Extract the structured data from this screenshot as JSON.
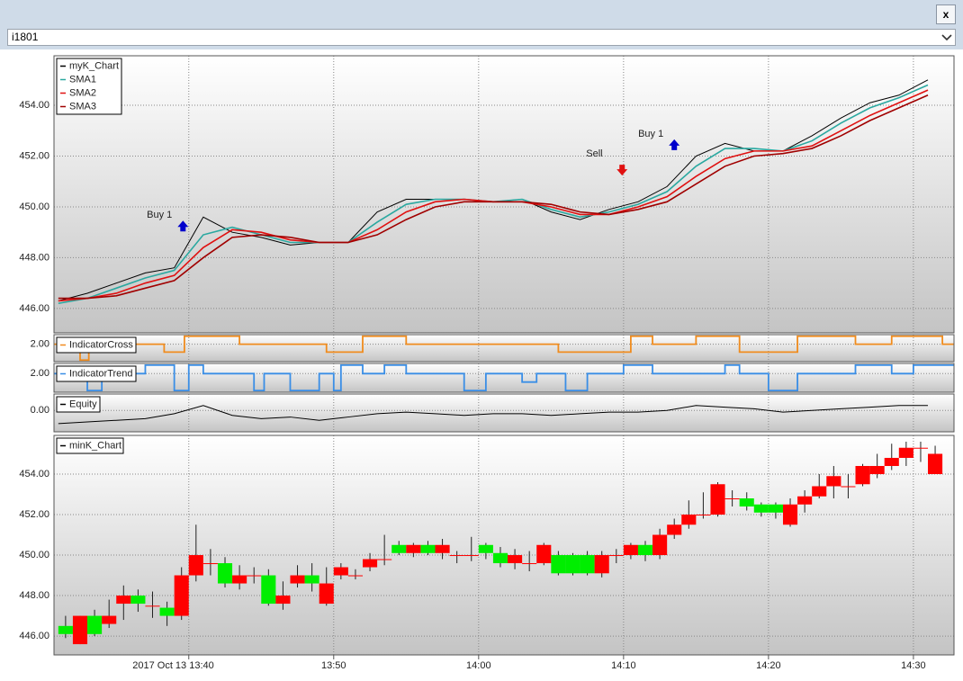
{
  "window": {
    "close_button": "x",
    "symbol": "i1801"
  },
  "chart_data": [
    {
      "type": "line",
      "x": [
        811,
        813,
        815,
        817,
        819,
        821,
        823,
        825,
        827,
        829,
        831,
        833,
        835,
        837,
        839,
        841,
        843,
        845,
        847,
        849,
        851,
        853,
        855,
        857,
        859,
        861,
        863,
        865,
        867,
        869,
        871
      ],
      "series": [
        {
          "name": "myK_Chart",
          "color": "#000000",
          "values": [
            446.3,
            446.6,
            447.0,
            447.4,
            447.6,
            449.6,
            449.0,
            448.8,
            448.5,
            448.6,
            448.6,
            449.8,
            450.3,
            450.3,
            450.3,
            450.2,
            450.3,
            449.8,
            449.5,
            449.9,
            450.2,
            450.8,
            452.0,
            452.5,
            452.2,
            452.2,
            452.8,
            453.5,
            454.1,
            454.4,
            455.0
          ]
        },
        {
          "name": "SMA1",
          "color": "#2aa8a0",
          "values": [
            446.2,
            446.4,
            446.8,
            447.2,
            447.5,
            448.9,
            449.2,
            448.9,
            448.6,
            448.6,
            448.6,
            449.4,
            450.1,
            450.3,
            450.3,
            450.2,
            450.3,
            449.9,
            449.6,
            449.8,
            450.1,
            450.6,
            451.6,
            452.3,
            452.3,
            452.2,
            452.6,
            453.3,
            453.9,
            454.3,
            454.8
          ]
        },
        {
          "name": "SMA2",
          "color": "#e01010",
          "values": [
            446.3,
            446.4,
            446.6,
            447.0,
            447.3,
            448.4,
            449.1,
            449.0,
            448.7,
            448.6,
            448.6,
            449.1,
            449.8,
            450.2,
            450.3,
            450.2,
            450.2,
            450.0,
            449.7,
            449.7,
            450.0,
            450.4,
            451.2,
            451.9,
            452.2,
            452.2,
            452.4,
            453.0,
            453.6,
            454.1,
            454.6
          ]
        },
        {
          "name": "SMA3",
          "color": "#a00000",
          "values": [
            446.4,
            446.4,
            446.5,
            446.8,
            447.1,
            448.0,
            448.8,
            448.9,
            448.8,
            448.6,
            448.6,
            448.9,
            449.5,
            450.0,
            450.2,
            450.2,
            450.2,
            450.1,
            449.8,
            449.7,
            449.9,
            450.2,
            450.9,
            451.6,
            452.0,
            452.1,
            452.3,
            452.8,
            453.4,
            453.9,
            454.4
          ]
        }
      ],
      "ylim": [
        445.04,
        455.95
      ],
      "yticks": [
        {
          "value": 446,
          "label": "446.00"
        },
        {
          "value": 448,
          "label": "448.00"
        },
        {
          "value": 450,
          "label": "450.00"
        },
        {
          "value": 452,
          "label": "452.00"
        },
        {
          "value": 454,
          "label": "454.00"
        }
      ],
      "grid": true,
      "legend": "top-left",
      "signals": [
        {
          "type": "buy",
          "label": "Buy 1",
          "x": 819.6,
          "value": 449.6,
          "color": "#0000cc"
        },
        {
          "type": "buy",
          "label": "Buy 1",
          "x": 853.5,
          "value": 452.8,
          "color": "#0000cc"
        },
        {
          "type": "sell",
          "label": "Sell",
          "x": 849.9,
          "value": 451.8,
          "color": "#e01010"
        }
      ]
    },
    {
      "type": "step",
      "x": [
        810.7,
        812.5,
        813.1,
        818.3,
        819.7,
        823.5,
        829.5,
        832,
        835,
        845.5,
        850.5,
        852,
        855,
        858,
        862,
        866,
        868.5,
        872
      ],
      "series": [
        {
          "name": "IndicatorCross",
          "color": "#f08c1e",
          "values": [
            2,
            0,
            2,
            1,
            3,
            2,
            1,
            3,
            2,
            1,
            3,
            2,
            3,
            1,
            3,
            2,
            3,
            2
          ]
        }
      ],
      "ylim": [
        -0.2,
        3.2
      ],
      "yticks": [
        {
          "value": 2,
          "label": "2.00"
        }
      ],
      "grid": true,
      "legend": "top-left"
    },
    {
      "type": "step",
      "x": [
        810.7,
        813,
        814,
        817,
        819,
        820,
        821,
        824.5,
        825.2,
        827,
        829,
        830,
        830.5,
        832,
        833.5,
        835,
        839,
        840.5,
        843,
        844,
        846,
        847.5,
        850,
        852,
        857,
        858,
        860,
        862,
        866,
        868.5,
        870
      ],
      "series": [
        {
          "name": "IndicatorTrend",
          "color": "#3a8ee6",
          "values": [
            2,
            0,
            2,
            3,
            0,
            3,
            2,
            0,
            2,
            0,
            2,
            0,
            3,
            2,
            3,
            2,
            0,
            2,
            1,
            2,
            0,
            2,
            3,
            2,
            3,
            2,
            0,
            2,
            3,
            2,
            3
          ]
        }
      ],
      "ylim": [
        -0.2,
        3.2
      ],
      "yticks": [
        {
          "value": 2,
          "label": "2.00"
        }
      ],
      "grid": true,
      "legend": "top-left"
    },
    {
      "type": "line",
      "x": [
        811,
        813,
        815,
        817,
        819,
        821,
        823,
        825,
        827,
        829,
        831,
        833,
        835,
        837,
        839,
        841,
        843,
        845,
        847,
        849,
        851,
        853,
        855,
        857,
        859,
        861,
        863,
        865,
        867,
        869,
        871
      ],
      "series": [
        {
          "name": "Equity",
          "color": "#000000",
          "values": [
            -0.8,
            -0.7,
            -0.6,
            -0.5,
            -0.2,
            0.3,
            -0.3,
            -0.5,
            -0.4,
            -0.6,
            -0.4,
            -0.2,
            -0.1,
            -0.2,
            -0.3,
            -0.2,
            -0.2,
            -0.3,
            -0.2,
            -0.1,
            -0.1,
            0.0,
            0.3,
            0.2,
            0.1,
            -0.1,
            0.0,
            0.1,
            0.2,
            0.3,
            0.3
          ]
        }
      ],
      "ylim": [
        -1.3,
        1.0
      ],
      "yticks": [
        {
          "value": 0,
          "label": "0.00"
        }
      ],
      "grid": true,
      "legend": "top-left"
    },
    {
      "type": "candlestick",
      "name": "minK_Chart",
      "up_color": "#ff0000",
      "down_color": "#00ee00",
      "x": [
        811,
        812,
        813,
        814,
        815,
        816,
        817,
        818,
        819,
        820,
        821,
        822,
        823,
        824,
        825,
        826,
        827,
        828,
        829,
        830,
        831,
        832,
        833,
        834,
        835,
        836,
        837,
        838,
        839,
        840,
        841,
        842,
        843,
        844,
        845,
        846,
        847,
        848,
        849,
        850,
        851,
        852,
        853,
        854,
        855,
        856,
        857,
        858,
        859,
        860,
        861,
        862,
        863,
        864,
        865,
        866,
        867,
        868,
        869,
        870,
        871
      ],
      "open": [
        446.5,
        445.6,
        447.0,
        446.6,
        447.6,
        448.0,
        447.5,
        447.4,
        447.0,
        449.0,
        449.6,
        449.6,
        448.6,
        449.0,
        449.0,
        447.6,
        448.6,
        449.0,
        447.6,
        449.0,
        449.0,
        449.4,
        449.8,
        450.5,
        450.1,
        450.5,
        450.1,
        450.0,
        450.0,
        450.5,
        450.1,
        449.6,
        449.6,
        449.6,
        450.0,
        450.0,
        450.0,
        449.1,
        450.0,
        450.0,
        450.5,
        450.0,
        451.0,
        451.5,
        452.0,
        452.0,
        452.8,
        452.8,
        452.5,
        452.5,
        451.5,
        452.5,
        452.9,
        453.4,
        453.4,
        453.5,
        454.0,
        454.4,
        454.8,
        455.3,
        454.0
      ],
      "high": [
        447.0,
        447.0,
        447.3,
        447.8,
        448.5,
        448.3,
        448.2,
        447.7,
        449.4,
        451.5,
        450.3,
        449.9,
        449.5,
        449.4,
        449.3,
        448.7,
        449.5,
        449.6,
        449.4,
        449.6,
        449.3,
        450.1,
        451.0,
        450.7,
        450.6,
        450.7,
        450.8,
        450.2,
        450.9,
        450.6,
        450.4,
        450.3,
        450.2,
        450.6,
        450.2,
        450.1,
        450.2,
        450.2,
        450.3,
        450.6,
        450.7,
        451.3,
        451.8,
        452.7,
        453.1,
        453.6,
        453.2,
        453.1,
        452.6,
        452.6,
        452.8,
        453.2,
        454.0,
        454.4,
        454.0,
        454.5,
        455.0,
        455.5,
        455.6,
        455.6,
        455.4
      ],
      "low": [
        445.9,
        445.6,
        446.0,
        446.4,
        446.8,
        447.2,
        446.9,
        446.5,
        446.8,
        448.7,
        449.0,
        448.4,
        448.3,
        448.6,
        447.5,
        447.3,
        448.4,
        448.2,
        447.5,
        448.8,
        448.8,
        449.2,
        449.5,
        450.0,
        449.9,
        450.0,
        449.8,
        449.6,
        449.7,
        449.8,
        449.4,
        449.3,
        449.2,
        449.5,
        449.0,
        449.0,
        449.0,
        448.9,
        449.6,
        449.8,
        449.7,
        449.8,
        450.8,
        451.3,
        451.8,
        451.9,
        452.4,
        452.2,
        451.9,
        451.8,
        451.4,
        452.1,
        452.8,
        452.8,
        452.8,
        453.4,
        453.8,
        454.2,
        454.4,
        454.6,
        454.0
      ],
      "close": [
        446.1,
        447.0,
        446.1,
        447.0,
        448.0,
        447.6,
        447.5,
        447.0,
        449.0,
        450.0,
        449.6,
        448.6,
        449.0,
        449.0,
        447.6,
        448.0,
        449.0,
        448.6,
        448.6,
        449.4,
        449.0,
        449.8,
        449.8,
        450.1,
        450.5,
        450.1,
        450.5,
        450.0,
        450.0,
        450.1,
        449.6,
        450.0,
        449.6,
        450.5,
        449.1,
        449.1,
        449.1,
        450.0,
        450.0,
        450.5,
        450.0,
        451.0,
        451.5,
        452.0,
        452.0,
        453.5,
        452.8,
        452.4,
        452.1,
        452.1,
        452.5,
        452.9,
        453.4,
        453.9,
        453.4,
        454.4,
        454.4,
        454.8,
        455.3,
        455.3,
        455.0
      ],
      "ylim": [
        445.07,
        455.91
      ],
      "yticks": [
        {
          "value": 446,
          "label": "446.00"
        },
        {
          "value": 448,
          "label": "448.00"
        },
        {
          "value": 450,
          "label": "450.00"
        },
        {
          "value": 452,
          "label": "452.00"
        },
        {
          "value": 454,
          "label": "454.00"
        }
      ],
      "xlim": [
        810.7,
        872.8
      ],
      "xticks": [
        {
          "value": 820,
          "label": "2017 Oct 13 13:40"
        },
        {
          "value": 830,
          "label": "13:50"
        },
        {
          "value": 840,
          "label": "14:00"
        },
        {
          "value": 850,
          "label": "14:10"
        },
        {
          "value": 860,
          "label": "14:20"
        },
        {
          "value": 870,
          "label": "14:30"
        }
      ],
      "grid": true,
      "legend": "top-left"
    }
  ]
}
